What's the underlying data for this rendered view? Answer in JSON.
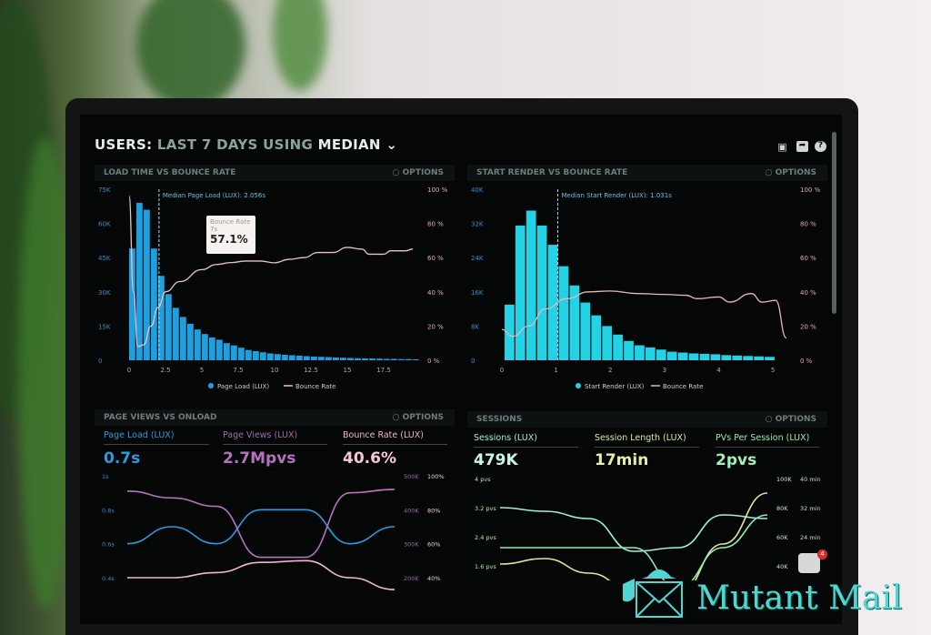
{
  "header": {
    "prefix": "USERS:",
    "range": "LAST 7 DAYS",
    "using": "USING",
    "stat": "MEDIAN",
    "icons": [
      "monitor-icon",
      "share-icon",
      "help-icon"
    ]
  },
  "options_label": "OPTIONS",
  "colors": {
    "blue": "#1f9fe0",
    "cyan": "#22d3e6",
    "pink": "#e9a7b6",
    "purple": "#b86fb8",
    "green": "#8fe8b0",
    "yellow": "#d9e89a",
    "teal": "#7fe6d6"
  },
  "chart_data": [
    {
      "type": "bar",
      "title": "LOAD TIME VS BOUNCE RATE",
      "annotation": "Median Page Load (LUX): 2.056s",
      "median": 2.056,
      "xlim": [
        0,
        19.75
      ],
      "xticks": [
        "0",
        "2.5",
        "5",
        "7.5",
        "10",
        "12.5",
        "15",
        "17.5"
      ],
      "ylim": [
        0,
        75000
      ],
      "yticks": [
        "0",
        "15K",
        "30K",
        "45K",
        "60K",
        "75K"
      ],
      "y2lim": [
        0,
        100
      ],
      "y2ticks": [
        "0 %",
        "20 %",
        "40 %",
        "60 %",
        "80 %",
        "100 %"
      ],
      "bin_width": 0.5,
      "series": [
        {
          "name": "Page Load (LUX)",
          "values": [
            49000,
            69000,
            66000,
            49000,
            37000,
            29000,
            23000,
            19000,
            16000,
            13500,
            11500,
            10000,
            9000,
            7500,
            6500,
            5500,
            4500,
            4000,
            3500,
            3000,
            2700,
            2400,
            2200,
            2000,
            1800,
            1600,
            1500,
            1400,
            1200,
            1100,
            1000,
            900,
            800,
            800,
            700,
            600,
            600,
            500,
            500,
            400
          ]
        },
        {
          "name": "Bounce Rate",
          "axis": "right",
          "points": [
            [
              0,
              96
            ],
            [
              0.3,
              40
            ],
            [
              0.6,
              8
            ],
            [
              1,
              9
            ],
            [
              1.5,
              20
            ],
            [
              2,
              31
            ],
            [
              2.5,
              40
            ],
            [
              3.5,
              46
            ],
            [
              5,
              53
            ],
            [
              6,
              56
            ],
            [
              7,
              57.1
            ],
            [
              8,
              58
            ],
            [
              9,
              58
            ],
            [
              10,
              57
            ],
            [
              11,
              59
            ],
            [
              12,
              60
            ],
            [
              13,
              63
            ],
            [
              14,
              63
            ],
            [
              15,
              66
            ],
            [
              16,
              65
            ],
            [
              16.5,
              62
            ],
            [
              17.5,
              62
            ],
            [
              18,
              64
            ],
            [
              19,
              64
            ],
            [
              19.5,
              65
            ]
          ]
        }
      ],
      "tooltip": {
        "label": "Bounce Rate",
        "x": "7s",
        "value": "57.1%"
      },
      "legend": "bottom"
    },
    {
      "type": "bar",
      "title": "START RENDER VS BOUNCE RATE",
      "annotation": "Median Start Render (LUX): 1.031s",
      "median": 1.031,
      "xlim": [
        0,
        5.3
      ],
      "xticks": [
        "0",
        "1",
        "2",
        "3",
        "4",
        "5"
      ],
      "ylim": [
        0,
        40000
      ],
      "yticks": [
        "0",
        "8K",
        "16K",
        "24K",
        "32K",
        "40K"
      ],
      "y2lim": [
        0,
        100
      ],
      "y2ticks": [
        "0 %",
        "20 %",
        "40 %",
        "60 %",
        "80 %",
        "100 %"
      ],
      "bin_width": 0.2,
      "series": [
        {
          "name": "Start Render (LUX)",
          "values": [
            13000,
            31500,
            35000,
            31500,
            27000,
            22000,
            17500,
            13500,
            10500,
            8000,
            6000,
            4500,
            3500,
            3000,
            2500,
            2000,
            1800,
            1600,
            1500,
            1400,
            1200,
            1100,
            1000,
            900,
            800
          ]
        },
        {
          "name": "Bounce Rate",
          "axis": "right",
          "points": [
            [
              0,
              18
            ],
            [
              0.2,
              14
            ],
            [
              0.5,
              20
            ],
            [
              0.8,
              30
            ],
            [
              1.2,
              36
            ],
            [
              1.6,
              40
            ],
            [
              2,
              40.5
            ],
            [
              2.5,
              39
            ],
            [
              3,
              38.5
            ],
            [
              3.4,
              38
            ],
            [
              3.6,
              36
            ],
            [
              4,
              37
            ],
            [
              4.2,
              34
            ],
            [
              4.6,
              39
            ],
            [
              4.8,
              34
            ],
            [
              5.05,
              35
            ],
            [
              5.25,
              13
            ]
          ]
        }
      ],
      "legend": "bottom"
    },
    {
      "type": "line",
      "title": "PAGE VIEWS VS ONLOAD",
      "stats": [
        {
          "label": "Page Load (LUX)",
          "value": "0.7s"
        },
        {
          "label": "Page Views (LUX)",
          "value": "2.7Mpvs"
        },
        {
          "label": "Bounce Rate (LUX)",
          "value": "40.6%"
        }
      ],
      "yticks": [
        "0.4s",
        "0.6s",
        "0.8s",
        "1s"
      ],
      "y2ticks": [
        "200K",
        "300K",
        "400K",
        "500K"
      ],
      "y3ticks": [
        "40%",
        "60%",
        "80%",
        "100%"
      ],
      "series": [
        {
          "name": "Page Load (LUX)",
          "values": [
            0.6,
            0.7,
            0.6,
            0.8,
            0.8,
            0.6,
            0.7
          ]
        },
        {
          "name": "Page Views (LUX)",
          "values": [
            455000,
            435000,
            410000,
            260000,
            260000,
            450000,
            460000
          ]
        },
        {
          "name": "Bounce Rate (LUX)",
          "values": [
            40,
            40,
            43,
            49,
            50,
            40,
            33
          ]
        }
      ]
    },
    {
      "type": "line",
      "title": "SESSIONS",
      "stats": [
        {
          "label": "Sessions (LUX)",
          "value": "479K"
        },
        {
          "label": "Session Length (LUX)",
          "value": "17min"
        },
        {
          "label": "PVs Per Session (LUX)",
          "value": "2pvs"
        }
      ],
      "yticks": [
        "1.6 pvs",
        "2.4 pvs",
        "3.2 pvs",
        "4 pvs"
      ],
      "y2ticks": [
        "40K",
        "60K",
        "80K",
        "100K"
      ],
      "y3ticks": [
        "",
        "24 min",
        "32 min",
        "40 min"
      ],
      "series": [
        {
          "name": "PVs Per Session (LUX)",
          "values": [
            3.2,
            3.1,
            2.9,
            2.0,
            2.1,
            3.0,
            2.9
          ]
        },
        {
          "name": "Session Length (LUX)",
          "values": [
            1.65,
            1.8,
            1.4,
            0.9,
            0.8,
            2.2,
            3.6
          ]
        },
        {
          "name": "Sessions (LUX)",
          "values": [
            2.1,
            2.1,
            2.1,
            2.1,
            1.0,
            2.1,
            3.0
          ]
        }
      ]
    }
  ],
  "watermark": {
    "text": "Mutant Mail"
  },
  "notification": {
    "count": "4"
  }
}
